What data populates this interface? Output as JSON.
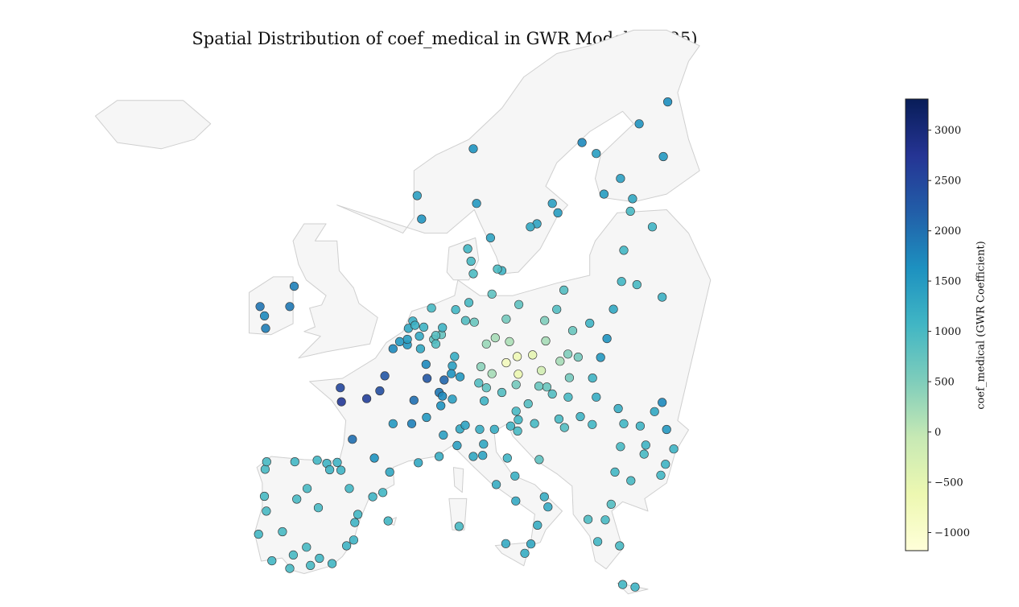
{
  "title": "Spatial Distribution of coef_medical in GWR Model (PM25)",
  "colorbar": {
    "label": "coef_medical (GWR Coefficient)",
    "min": -1180,
    "max": 3310,
    "ticks": [
      3000,
      2500,
      2000,
      1500,
      1000,
      500,
      0,
      -500,
      -1000
    ],
    "tick_labels": [
      "3000",
      "2500",
      "2000",
      "1500",
      "1000",
      "500",
      "0",
      "−500",
      "−1000"
    ],
    "colormap": "YlGnBu",
    "stops": [
      "#ffffd9",
      "#edf8b1",
      "#c7e9b4",
      "#7fcdbb",
      "#41b6c4",
      "#1d91c0",
      "#225ea8",
      "#253494",
      "#081d58"
    ]
  },
  "map_colors": {
    "land": "#f6f6f6",
    "border": "#cfcfcf",
    "marker_edge": "#333333"
  },
  "chart_data": {
    "type": "scatter",
    "title": "Spatial Distribution of coef_medical in GWR Model (PM25)",
    "legend": "colorbar-right",
    "points": [
      {
        "lon": 5.3,
        "lat": 60.4,
        "v": 1400
      },
      {
        "lon": 5.7,
        "lat": 58.9,
        "v": 1550
      },
      {
        "lon": 10.4,
        "lat": 63.4,
        "v": 1600
      },
      {
        "lon": 10.7,
        "lat": 59.9,
        "v": 1500
      },
      {
        "lon": 11.97,
        "lat": 57.7,
        "v": 1350
      },
      {
        "lon": 13.0,
        "lat": 55.6,
        "v": 1100
      },
      {
        "lon": 18.1,
        "lat": 59.3,
        "v": 1450
      },
      {
        "lon": 17.6,
        "lat": 59.9,
        "v": 1400
      },
      {
        "lon": 16.2,
        "lat": 58.6,
        "v": 1350
      },
      {
        "lon": 15.6,
        "lat": 58.4,
        "v": 1300
      },
      {
        "lon": 20.3,
        "lat": 63.8,
        "v": 1700
      },
      {
        "lon": 24.9,
        "lat": 60.2,
        "v": 1300
      },
      {
        "lon": 23.8,
        "lat": 61.5,
        "v": 1400
      },
      {
        "lon": 25.5,
        "lat": 65.0,
        "v": 1600
      },
      {
        "lon": 27.7,
        "lat": 62.9,
        "v": 1500
      },
      {
        "lon": 28.1,
        "lat": 66.4,
        "v": 1650
      },
      {
        "lon": 21.6,
        "lat": 63.1,
        "v": 1450
      },
      {
        "lon": 22.3,
        "lat": 60.5,
        "v": 1450
      },
      {
        "lon": 24.7,
        "lat": 59.4,
        "v": 1000
      },
      {
        "lon": 24.1,
        "lat": 56.9,
        "v": 1050
      },
      {
        "lon": 25.3,
        "lat": 54.7,
        "v": 1000
      },
      {
        "lon": 23.9,
        "lat": 54.9,
        "v": 1050
      },
      {
        "lon": 26.7,
        "lat": 58.4,
        "v": 1100
      },
      {
        "lon": 27.6,
        "lat": 53.9,
        "v": 1150
      },
      {
        "lon": 12.6,
        "lat": 55.7,
        "v": 950
      },
      {
        "lon": 10.2,
        "lat": 56.2,
        "v": 1000
      },
      {
        "lon": 9.9,
        "lat": 57.0,
        "v": 1050
      },
      {
        "lon": 10.4,
        "lat": 55.4,
        "v": 950
      },
      {
        "lon": -6.3,
        "lat": 53.3,
        "v": 1900
      },
      {
        "lon": -8.5,
        "lat": 51.9,
        "v": 1850
      },
      {
        "lon": -9.0,
        "lat": 53.3,
        "v": 1950
      },
      {
        "lon": -5.9,
        "lat": 54.6,
        "v": 1800
      },
      {
        "lon": -8.6,
        "lat": 52.7,
        "v": 1700
      },
      {
        "lon": 2.35,
        "lat": 48.86,
        "v": 2300
      },
      {
        "lon": 4.8,
        "lat": 45.8,
        "v": 1800
      },
      {
        "lon": 5.4,
        "lat": 43.3,
        "v": 1300
      },
      {
        "lon": 1.4,
        "lat": 43.6,
        "v": 1600
      },
      {
        "lon": -0.6,
        "lat": 44.8,
        "v": 2000
      },
      {
        "lon": -1.6,
        "lat": 47.2,
        "v": 2700
      },
      {
        "lon": -1.7,
        "lat": 48.1,
        "v": 2500
      },
      {
        "lon": 3.1,
        "lat": 50.6,
        "v": 1700
      },
      {
        "lon": 7.3,
        "lat": 47.8,
        "v": 1900
      },
      {
        "lon": 6.2,
        "lat": 48.7,
        "v": 2300
      },
      {
        "lon": 7.75,
        "lat": 48.6,
        "v": 2100
      },
      {
        "lon": 5.0,
        "lat": 47.3,
        "v": 2000
      },
      {
        "lon": 0.7,
        "lat": 47.4,
        "v": 2600
      },
      {
        "lon": 1.9,
        "lat": 47.9,
        "v": 2400
      },
      {
        "lon": 3.1,
        "lat": 45.8,
        "v": 1500
      },
      {
        "lon": 6.1,
        "lat": 49.6,
        "v": 1700
      },
      {
        "lon": 7.3,
        "lat": 43.7,
        "v": 1200
      },
      {
        "lon": 2.8,
        "lat": 42.7,
        "v": 1300
      },
      {
        "lon": 4.4,
        "lat": 50.85,
        "v": 1500
      },
      {
        "lon": 4.4,
        "lat": 51.2,
        "v": 1450
      },
      {
        "lon": 3.7,
        "lat": 51.05,
        "v": 1500
      },
      {
        "lon": 5.6,
        "lat": 50.6,
        "v": 1300
      },
      {
        "lon": 4.9,
        "lat": 52.37,
        "v": 1200
      },
      {
        "lon": 4.5,
        "lat": 51.9,
        "v": 1300
      },
      {
        "lon": 5.1,
        "lat": 52.1,
        "v": 1150
      },
      {
        "lon": 6.6,
        "lat": 53.2,
        "v": 1000
      },
      {
        "lon": 5.5,
        "lat": 51.4,
        "v": 1250
      },
      {
        "lon": 5.9,
        "lat": 51.98,
        "v": 1100
      },
      {
        "lon": 6.8,
        "lat": 51.2,
        "v": 800
      },
      {
        "lon": 7.0,
        "lat": 50.9,
        "v": 900
      },
      {
        "lon": 7.5,
        "lat": 51.5,
        "v": 750
      },
      {
        "lon": 7.0,
        "lat": 51.45,
        "v": 850
      },
      {
        "lon": 9.7,
        "lat": 52.4,
        "v": 900
      },
      {
        "lon": 10.0,
        "lat": 53.55,
        "v": 1000
      },
      {
        "lon": 8.8,
        "lat": 53.1,
        "v": 1050
      },
      {
        "lon": 13.4,
        "lat": 52.5,
        "v": 600
      },
      {
        "lon": 12.4,
        "lat": 51.3,
        "v": 200
      },
      {
        "lon": 13.7,
        "lat": 51.05,
        "v": 150
      },
      {
        "lon": 11.6,
        "lat": 48.1,
        "v": 800
      },
      {
        "lon": 9.2,
        "lat": 48.8,
        "v": 1500
      },
      {
        "lon": 8.7,
        "lat": 50.1,
        "v": 1200
      },
      {
        "lon": 11.1,
        "lat": 49.45,
        "v": 400
      },
      {
        "lon": 8.5,
        "lat": 49.5,
        "v": 1400
      },
      {
        "lon": 10.9,
        "lat": 48.4,
        "v": 900
      },
      {
        "lon": 12.1,
        "lat": 54.1,
        "v": 800
      },
      {
        "lon": 11.6,
        "lat": 50.9,
        "v": 300
      },
      {
        "lon": 10.5,
        "lat": 52.3,
        "v": 700
      },
      {
        "lon": 8.4,
        "lat": 49.0,
        "v": 1600
      },
      {
        "lon": 7.6,
        "lat": 51.95,
        "v": 1100
      },
      {
        "lon": 12.1,
        "lat": 49.0,
        "v": 200
      },
      {
        "lon": 14.4,
        "lat": 50.1,
        "v": -700
      },
      {
        "lon": 16.6,
        "lat": 49.2,
        "v": -200
      },
      {
        "lon": 18.3,
        "lat": 49.8,
        "v": 200
      },
      {
        "lon": 13.4,
        "lat": 49.7,
        "v": -800
      },
      {
        "lon": 15.8,
        "lat": 50.2,
        "v": -500
      },
      {
        "lon": 14.5,
        "lat": 48.97,
        "v": -600
      },
      {
        "lon": 17.1,
        "lat": 48.15,
        "v": 700
      },
      {
        "lon": 21.26,
        "lat": 48.72,
        "v": 1100
      },
      {
        "lon": 19.15,
        "lat": 48.74,
        "v": 600
      },
      {
        "lon": 19.04,
        "lat": 47.5,
        "v": 1000
      },
      {
        "lon": 21.6,
        "lat": 47.5,
        "v": 1200
      },
      {
        "lon": 20.15,
        "lat": 46.25,
        "v": 1100
      },
      {
        "lon": 18.2,
        "lat": 46.1,
        "v": 1000
      },
      {
        "lon": 17.6,
        "lat": 47.7,
        "v": 900
      },
      {
        "lon": 16.37,
        "lat": 48.2,
        "v": 700
      },
      {
        "lon": 15.4,
        "lat": 47.07,
        "v": 900
      },
      {
        "lon": 14.3,
        "lat": 48.3,
        "v": 600
      },
      {
        "lon": 11.4,
        "lat": 47.26,
        "v": 1100
      },
      {
        "lon": 13.0,
        "lat": 47.8,
        "v": 900
      },
      {
        "lon": 14.3,
        "lat": 46.6,
        "v": 1000
      },
      {
        "lon": 8.5,
        "lat": 47.37,
        "v": 1400
      },
      {
        "lon": 6.15,
        "lat": 46.2,
        "v": 1500
      },
      {
        "lon": 7.45,
        "lat": 46.95,
        "v": 1600
      },
      {
        "lon": 7.6,
        "lat": 47.56,
        "v": 1700
      },
      {
        "lon": 21.0,
        "lat": 52.23,
        "v": 1100
      },
      {
        "lon": 19.95,
        "lat": 50.06,
        "v": 600
      },
      {
        "lon": 17.0,
        "lat": 51.1,
        "v": 200
      },
      {
        "lon": 16.9,
        "lat": 52.4,
        "v": 500
      },
      {
        "lon": 18.65,
        "lat": 54.35,
        "v": 900
      },
      {
        "lon": 19.45,
        "lat": 51.76,
        "v": 700
      },
      {
        "lon": 22.57,
        "lat": 51.25,
        "v": 1600
      },
      {
        "lon": 14.55,
        "lat": 53.43,
        "v": 800
      },
      {
        "lon": 23.16,
        "lat": 53.13,
        "v": 1300
      },
      {
        "lon": 21.99,
        "lat": 50.04,
        "v": 1500
      },
      {
        "lon": 18.0,
        "lat": 53.12,
        "v": 900
      },
      {
        "lon": 19.02,
        "lat": 50.26,
        "v": 500
      },
      {
        "lon": 26.1,
        "lat": 44.43,
        "v": 1100
      },
      {
        "lon": 23.6,
        "lat": 46.77,
        "v": 1200
      },
      {
        "lon": 27.6,
        "lat": 47.16,
        "v": 1700
      },
      {
        "lon": 21.23,
        "lat": 45.75,
        "v": 1050
      },
      {
        "lon": 28.65,
        "lat": 44.18,
        "v": 1100
      },
      {
        "lon": 23.8,
        "lat": 44.33,
        "v": 1000
      },
      {
        "lon": 25.6,
        "lat": 45.65,
        "v": 1100
      },
      {
        "lon": 24.1,
        "lat": 45.8,
        "v": 1050
      },
      {
        "lon": 28.0,
        "lat": 45.43,
        "v": 1500
      },
      {
        "lon": 26.9,
        "lat": 46.57,
        "v": 1300
      },
      {
        "lon": 23.3,
        "lat": 42.7,
        "v": 1050
      },
      {
        "lon": 24.75,
        "lat": 42.15,
        "v": 1000
      },
      {
        "lon": 27.9,
        "lat": 43.2,
        "v": 1100
      },
      {
        "lon": 27.47,
        "lat": 42.5,
        "v": 1050
      },
      {
        "lon": 25.95,
        "lat": 43.85,
        "v": 1000
      },
      {
        "lon": 23.72,
        "lat": 37.98,
        "v": 1000
      },
      {
        "lon": 22.95,
        "lat": 40.64,
        "v": 900
      },
      {
        "lon": 21.73,
        "lat": 38.25,
        "v": 1050
      },
      {
        "lon": 25.13,
        "lat": 35.34,
        "v": 1100
      },
      {
        "lon": 22.42,
        "lat": 39.64,
        "v": 1000
      },
      {
        "lon": 20.85,
        "lat": 39.67,
        "v": 950
      },
      {
        "lon": 24.0,
        "lat": 35.5,
        "v": 1050
      },
      {
        "lon": 15.98,
        "lat": 45.81,
        "v": 1000
      },
      {
        "lon": 14.5,
        "lat": 46.05,
        "v": 1050
      },
      {
        "lon": 18.7,
        "lat": 45.55,
        "v": 900
      },
      {
        "lon": 16.4,
        "lat": 43.5,
        "v": 800
      },
      {
        "lon": 14.44,
        "lat": 45.33,
        "v": 1000
      },
      {
        "lon": 12.5,
        "lat": 41.9,
        "v": 1200
      },
      {
        "lon": 9.19,
        "lat": 45.46,
        "v": 1300
      },
      {
        "lon": 14.27,
        "lat": 40.85,
        "v": 1250
      },
      {
        "lon": 7.68,
        "lat": 45.07,
        "v": 1400
      },
      {
        "lon": 11.26,
        "lat": 43.77,
        "v": 1350
      },
      {
        "lon": 11.34,
        "lat": 44.49,
        "v": 1300
      },
      {
        "lon": 12.33,
        "lat": 45.44,
        "v": 1200
      },
      {
        "lon": 8.93,
        "lat": 44.4,
        "v": 1400
      },
      {
        "lon": 16.87,
        "lat": 41.12,
        "v": 1200
      },
      {
        "lon": 13.36,
        "lat": 38.12,
        "v": 1250
      },
      {
        "lon": 15.09,
        "lat": 37.5,
        "v": 1200
      },
      {
        "lon": 9.11,
        "lat": 39.22,
        "v": 1000
      },
      {
        "lon": 15.65,
        "lat": 38.1,
        "v": 1300
      },
      {
        "lon": 10.99,
        "lat": 45.44,
        "v": 1200
      },
      {
        "lon": 10.4,
        "lat": 43.7,
        "v": 1300
      },
      {
        "lon": 13.5,
        "lat": 43.6,
        "v": 1100
      },
      {
        "lon": 14.2,
        "lat": 42.45,
        "v": 1150
      },
      {
        "lon": 9.67,
        "lat": 45.7,
        "v": 1350
      },
      {
        "lon": 17.2,
        "lat": 40.47,
        "v": 1250
      },
      {
        "lon": 16.25,
        "lat": 39.3,
        "v": 1200
      },
      {
        "lon": 13.8,
        "lat": 45.65,
        "v": 1100
      },
      {
        "lon": -3.7,
        "lat": 40.42,
        "v": 1000
      },
      {
        "lon": 2.17,
        "lat": 41.39,
        "v": 1050
      },
      {
        "lon": -0.38,
        "lat": 39.47,
        "v": 1100
      },
      {
        "lon": -5.98,
        "lat": 37.39,
        "v": 1000
      },
      {
        "lon": -0.88,
        "lat": 41.65,
        "v": 1050
      },
      {
        "lon": -4.42,
        "lat": 36.72,
        "v": 1000
      },
      {
        "lon": -2.93,
        "lat": 43.26,
        "v": 1100
      },
      {
        "lon": -8.54,
        "lat": 42.88,
        "v": 1000
      },
      {
        "lon": -1.13,
        "lat": 37.98,
        "v": 1100
      },
      {
        "lon": 2.65,
        "lat": 39.57,
        "v": 1050
      },
      {
        "lon": -4.72,
        "lat": 41.65,
        "v": 1000
      },
      {
        "lon": -3.6,
        "lat": 37.18,
        "v": 1050
      },
      {
        "lon": -5.84,
        "lat": 43.36,
        "v": 1050
      },
      {
        "lon": -1.98,
        "lat": 43.32,
        "v": 1100
      },
      {
        "lon": -0.48,
        "lat": 38.35,
        "v": 1100
      },
      {
        "lon": -8.61,
        "lat": 41.15,
        "v": 1000
      },
      {
        "lon": -9.14,
        "lat": 38.72,
        "v": 1050
      },
      {
        "lon": -8.43,
        "lat": 40.2,
        "v": 1000
      },
      {
        "lon": -7.93,
        "lat": 37.02,
        "v": 1050
      },
      {
        "lon": -6.97,
        "lat": 38.88,
        "v": 1000
      },
      {
        "lon": -2.45,
        "lat": 36.84,
        "v": 1050
      },
      {
        "lon": -0.1,
        "lat": 39.99,
        "v": 1050
      },
      {
        "lon": 1.25,
        "lat": 41.12,
        "v": 1100
      },
      {
        "lon": -1.64,
        "lat": 42.82,
        "v": 1100
      },
      {
        "lon": -3.8,
        "lat": 43.46,
        "v": 1050
      },
      {
        "lon": -8.4,
        "lat": 43.36,
        "v": 1000
      },
      {
        "lon": -6.3,
        "lat": 36.53,
        "v": 1000
      },
      {
        "lon": -4.78,
        "lat": 37.89,
        "v": 1000
      },
      {
        "lon": -5.66,
        "lat": 40.97,
        "v": 1000
      },
      {
        "lon": -2.67,
        "lat": 42.85,
        "v": 1100
      }
    ]
  }
}
